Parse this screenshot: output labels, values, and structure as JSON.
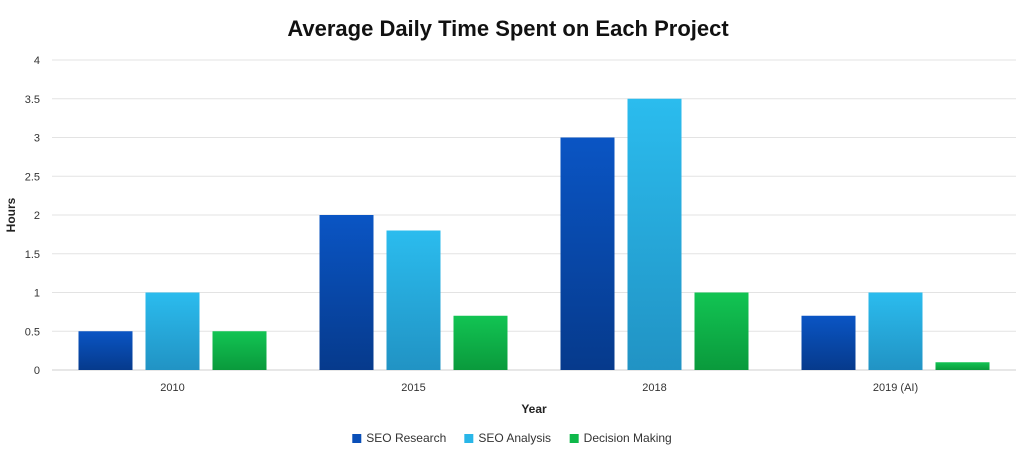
{
  "chart_data": {
    "type": "bar",
    "title": "Average Daily Time Spent on Each Project",
    "xlabel": "Year",
    "ylabel": "Hours",
    "categories": [
      "2010",
      "2015",
      "2018",
      "2019 (AI)"
    ],
    "series": [
      {
        "name": "SEO Research",
        "values": [
          0.5,
          2.0,
          3.0,
          0.7
        ],
        "color": "#0a4fb8"
      },
      {
        "name": "SEO Analysis",
        "values": [
          1.0,
          1.8,
          3.5,
          1.0
        ],
        "color": "#29b6e8"
      },
      {
        "name": "Decision Making",
        "values": [
          0.5,
          0.7,
          1.0,
          0.1
        ],
        "color": "#0fb84a"
      }
    ],
    "yticks": [
      "0",
      "0.5",
      "1",
      "1.5",
      "2",
      "2.5",
      "3",
      "3.5",
      "4"
    ],
    "ylim": [
      0,
      4
    ],
    "grid": true,
    "legend_position": "bottom"
  }
}
